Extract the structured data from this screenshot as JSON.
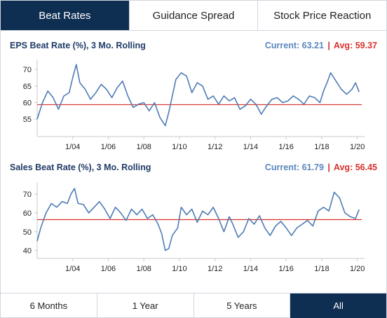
{
  "tabs": [
    {
      "label": "Beat Rates",
      "active": true
    },
    {
      "label": "Guidance Spread",
      "active": false
    },
    {
      "label": "Stock Price Reaction",
      "active": false
    }
  ],
  "ranges": [
    {
      "label": "6 Months",
      "active": false
    },
    {
      "label": "1 Year",
      "active": false
    },
    {
      "label": "5 Years",
      "active": false
    },
    {
      "label": "All",
      "active": true
    }
  ],
  "colors": {
    "line": "#4e7bb5",
    "avg": "#d9312b",
    "accent": "#0f2f52",
    "title": "#1f3b66"
  },
  "chart_data": [
    {
      "type": "line",
      "title": "EPS Beat Rate (%), 3 Mo. Rolling",
      "current_label": "Current: 63.21",
      "separator": "|",
      "avg_label": "Avg: 59.37",
      "current": 63.21,
      "average": 59.37,
      "ylim": [
        51,
        73
      ],
      "yticks": [
        55,
        60,
        65,
        70
      ],
      "xlim": [
        2002.0,
        2020.25
      ],
      "xticks": [
        2004,
        2006,
        2008,
        2010,
        2012,
        2014,
        2016,
        2018,
        2020
      ],
      "xtick_labels": [
        "1/04",
        "1/06",
        "1/08",
        "1/10",
        "1/12",
        "1/14",
        "1/16",
        "1/18",
        "1/20"
      ],
      "grid": false,
      "x": [
        2002.0,
        2002.3,
        2002.6,
        2002.9,
        2003.2,
        2003.5,
        2003.8,
        2004.0,
        2004.2,
        2004.4,
        2004.7,
        2005.0,
        2005.3,
        2005.6,
        2005.9,
        2006.2,
        2006.5,
        2006.8,
        2007.1,
        2007.4,
        2007.7,
        2008.0,
        2008.3,
        2008.6,
        2008.9,
        2009.2,
        2009.4,
        2009.6,
        2009.8,
        2010.1,
        2010.4,
        2010.7,
        2011.0,
        2011.3,
        2011.6,
        2011.9,
        2012.2,
        2012.5,
        2012.8,
        2013.1,
        2013.4,
        2013.7,
        2014.0,
        2014.3,
        2014.6,
        2014.9,
        2015.2,
        2015.5,
        2015.8,
        2016.1,
        2016.4,
        2016.7,
        2017.0,
        2017.3,
        2017.6,
        2017.9,
        2018.1,
        2018.3,
        2018.5,
        2018.8,
        2019.1,
        2019.4,
        2019.7,
        2019.9,
        2020.1
      ],
      "values": [
        55.0,
        60.0,
        63.5,
        61.5,
        58.0,
        62.0,
        63.0,
        67.5,
        71.5,
        66.0,
        64.0,
        61.0,
        63.0,
        65.5,
        64.0,
        61.5,
        64.5,
        66.5,
        62.0,
        58.5,
        59.5,
        60.0,
        57.5,
        60.0,
        55.5,
        53.0,
        57.0,
        62.0,
        67.0,
        69.0,
        68.0,
        63.0,
        66.0,
        65.0,
        61.0,
        62.0,
        59.5,
        62.0,
        60.5,
        61.5,
        58.0,
        59.0,
        61.0,
        59.5,
        56.5,
        59.0,
        61.0,
        61.5,
        60.0,
        60.5,
        62.0,
        61.0,
        59.5,
        62.0,
        61.5,
        60.0,
        63.5,
        66.0,
        69.0,
        66.5,
        64.0,
        62.5,
        64.0,
        66.0,
        63.21
      ]
    },
    {
      "type": "line",
      "title": "Sales Beat Rate (%), 3 Mo. Rolling",
      "current_label": "Current: 61.79",
      "separator": "|",
      "avg_label": "Avg: 56.45",
      "current": 61.79,
      "average": 56.45,
      "ylim": [
        38,
        76
      ],
      "yticks": [
        40,
        50,
        60,
        70
      ],
      "xlim": [
        2002.0,
        2020.25
      ],
      "xticks": [
        2004,
        2006,
        2008,
        2010,
        2012,
        2014,
        2016,
        2018,
        2020
      ],
      "xtick_labels": [
        "1/04",
        "1/06",
        "1/08",
        "1/10",
        "1/12",
        "1/14",
        "1/16",
        "1/18",
        "1/20"
      ],
      "grid": false,
      "x": [
        2002.0,
        2002.2,
        2002.5,
        2002.8,
        2003.1,
        2003.4,
        2003.7,
        2003.9,
        2004.1,
        2004.3,
        2004.6,
        2004.9,
        2005.2,
        2005.5,
        2005.8,
        2006.1,
        2006.4,
        2006.7,
        2007.0,
        2007.3,
        2007.6,
        2007.9,
        2008.2,
        2008.5,
        2008.8,
        2009.0,
        2009.2,
        2009.4,
        2009.6,
        2009.9,
        2010.1,
        2010.4,
        2010.7,
        2011.0,
        2011.3,
        2011.6,
        2011.9,
        2012.2,
        2012.5,
        2012.8,
        2013.0,
        2013.3,
        2013.6,
        2013.9,
        2014.2,
        2014.5,
        2014.8,
        2015.1,
        2015.4,
        2015.7,
        2016.0,
        2016.3,
        2016.6,
        2016.9,
        2017.2,
        2017.5,
        2017.8,
        2018.1,
        2018.4,
        2018.7,
        2019.0,
        2019.3,
        2019.6,
        2019.9,
        2020.1
      ],
      "values": [
        45.0,
        52.0,
        60.0,
        65.0,
        63.0,
        66.0,
        65.0,
        70.0,
        73.0,
        65.0,
        64.5,
        60.0,
        63.0,
        66.0,
        62.0,
        57.0,
        63.0,
        60.0,
        56.0,
        62.0,
        59.0,
        62.0,
        57.0,
        59.0,
        54.0,
        49.0,
        40.0,
        41.0,
        48.0,
        52.0,
        63.0,
        59.0,
        62.0,
        55.0,
        61.0,
        59.0,
        63.0,
        57.0,
        50.0,
        58.0,
        54.0,
        47.0,
        50.0,
        57.0,
        54.0,
        58.5,
        52.0,
        48.0,
        53.0,
        55.5,
        52.0,
        48.0,
        52.0,
        54.0,
        56.0,
        53.0,
        61.0,
        63.0,
        61.0,
        71.0,
        68.0,
        60.0,
        58.0,
        57.0,
        61.79
      ]
    }
  ]
}
